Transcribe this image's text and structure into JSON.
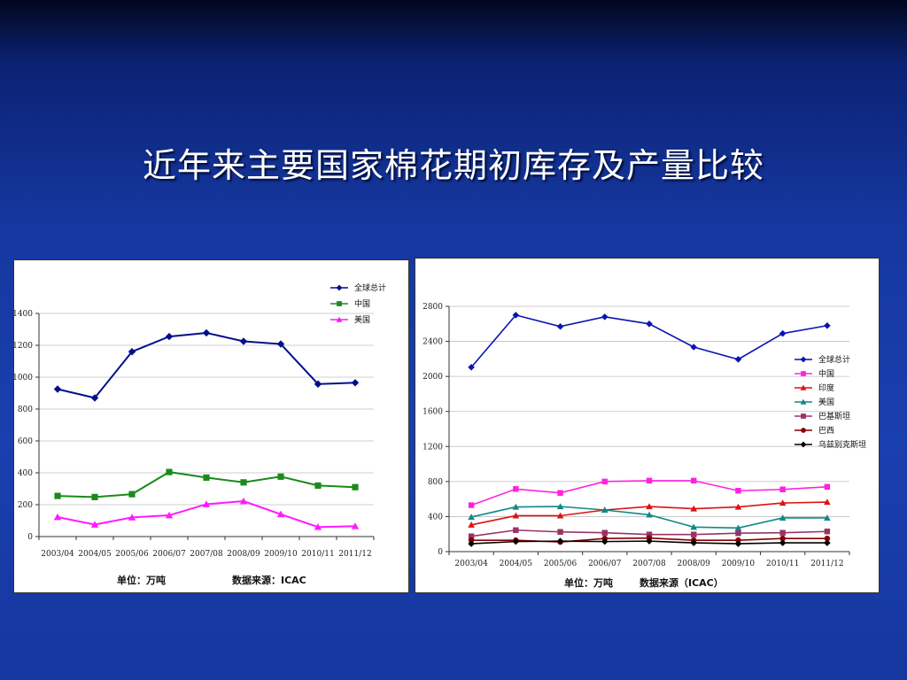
{
  "slide": {
    "title": "近年来主要国家棉花期初库存及产量比较"
  },
  "chart_data": [
    {
      "type": "line",
      "categories": [
        "2003/04",
        "2004/05",
        "2005/06",
        "2006/07",
        "2007/08",
        "2008/09",
        "2009/10",
        "2010/11",
        "2011/12"
      ],
      "series": [
        {
          "name": "全球总计",
          "color": "#000f8a",
          "marker": "diamond",
          "values": [
            925,
            870,
            1160,
            1255,
            1278,
            1225,
            1208,
            957,
            965
          ]
        },
        {
          "name": "中国",
          "color": "#1a8a1a",
          "marker": "square",
          "values": [
            255,
            248,
            266,
            405,
            370,
            340,
            376,
            320,
            310
          ]
        },
        {
          "name": "美国",
          "color": "#ff1aff",
          "marker": "triangle",
          "values": [
            122,
            75,
            120,
            133,
            203,
            222,
            140,
            60,
            65
          ]
        }
      ],
      "ylim": [
        0,
        1400
      ],
      "yticks": [
        0,
        200,
        400,
        600,
        800,
        1000,
        1200,
        1400
      ],
      "grid": true,
      "legend": "top-right",
      "footer_unit": "单位：万吨",
      "footer_source": "数据来源：ICAC"
    },
    {
      "type": "line",
      "categories": [
        "2003/04",
        "2004/05",
        "2005/06",
        "2006/07",
        "2007/08",
        "2008/09",
        "2009/10",
        "2010/11",
        "2011/12"
      ],
      "series": [
        {
          "name": "全球总计",
          "color": "#0a14b0",
          "marker": "diamond",
          "values": [
            2105,
            2700,
            2570,
            2680,
            2600,
            2335,
            2195,
            2490,
            2580
          ]
        },
        {
          "name": "中国",
          "color": "#ff22dd",
          "marker": "square",
          "values": [
            530,
            715,
            670,
            800,
            810,
            810,
            695,
            710,
            740
          ]
        },
        {
          "name": "印度",
          "color": "#dd1111",
          "marker": "triangle",
          "values": [
            305,
            410,
            410,
            475,
            515,
            490,
            510,
            555,
            565
          ]
        },
        {
          "name": "美国",
          "color": "#118888",
          "marker": "triangle",
          "values": [
            395,
            510,
            515,
            475,
            420,
            280,
            270,
            385,
            385
          ]
        },
        {
          "name": "巴基斯坦",
          "color": "#993366",
          "marker": "square",
          "values": [
            175,
            245,
            225,
            215,
            195,
            195,
            210,
            215,
            230
          ]
        },
        {
          "name": "巴西",
          "color": "#880000",
          "marker": "circle",
          "values": [
            130,
            130,
            110,
            150,
            155,
            130,
            130,
            150,
            150
          ]
        },
        {
          "name": "乌兹别克斯坦",
          "color": "#000000",
          "marker": "diamond",
          "values": [
            90,
            115,
            120,
            115,
            120,
            100,
            90,
            100,
            100
          ]
        }
      ],
      "ylim": [
        0,
        2800
      ],
      "yticks": [
        0,
        400,
        800,
        1200,
        1600,
        2000,
        2400,
        2800
      ],
      "grid": true,
      "legend": "right",
      "footer_unit": "单位：万吨",
      "footer_source": "数据来源（ICAC）"
    }
  ]
}
